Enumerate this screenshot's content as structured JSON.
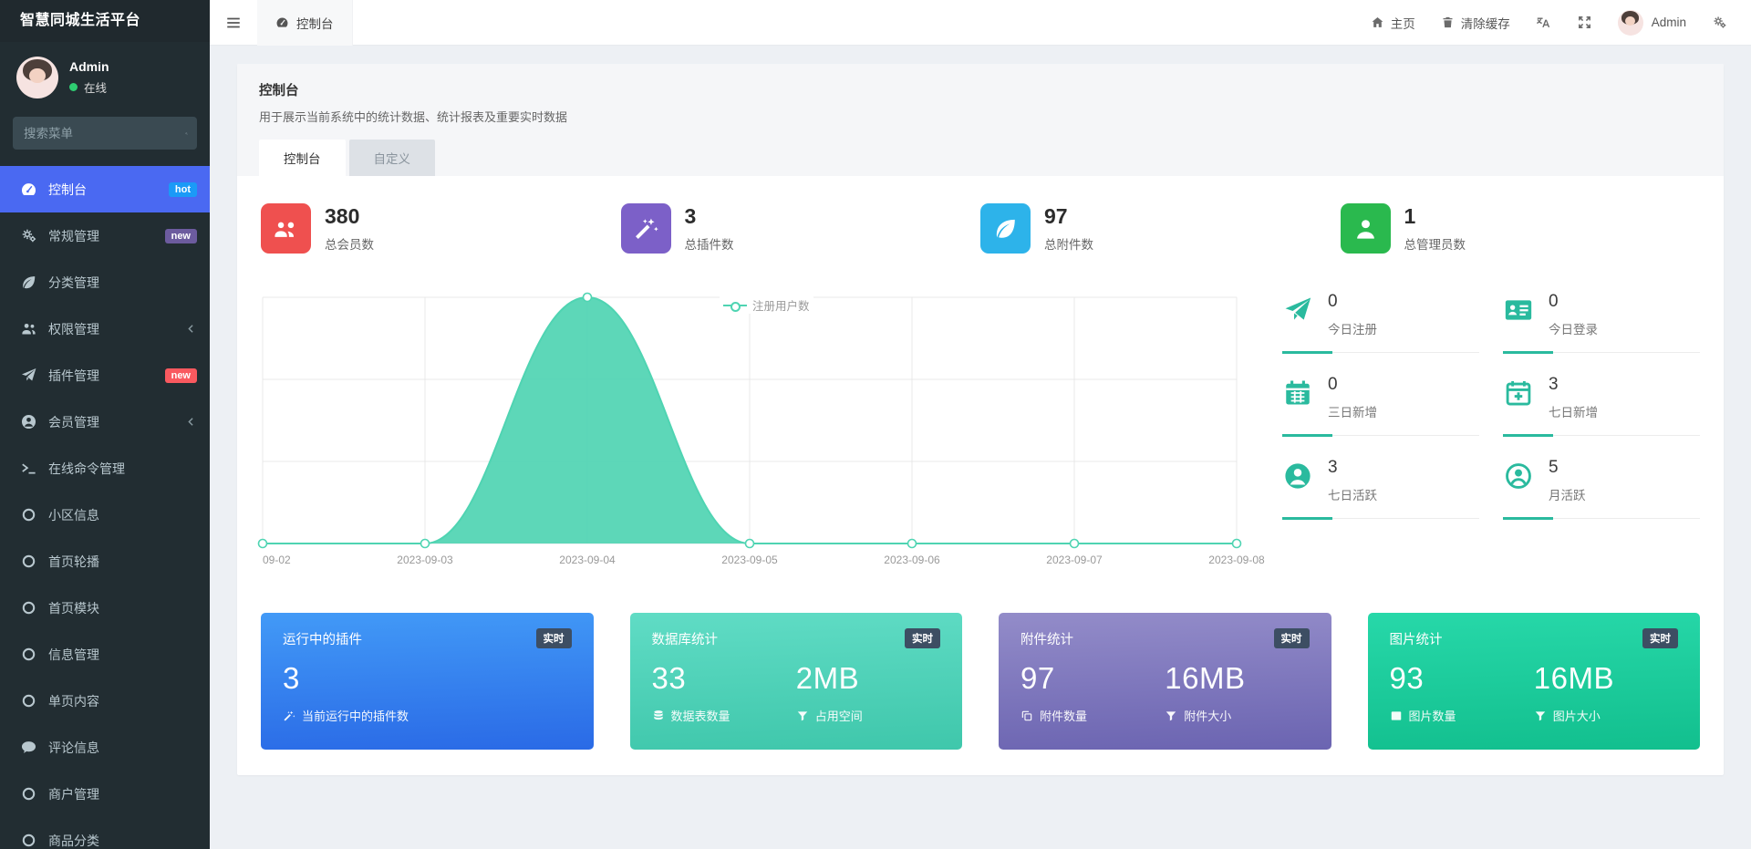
{
  "app": {
    "title": "智慧同城生活平台"
  },
  "sidebar": {
    "user": {
      "name": "Admin",
      "status": "在线"
    },
    "search_placeholder": "搜索菜单",
    "items": [
      {
        "slug": "dashboard",
        "icon": "gauge",
        "label": "控制台",
        "badge": "hot",
        "badge_color": "#1b9af7",
        "active": true
      },
      {
        "slug": "general",
        "icon": "gears",
        "label": "常规管理",
        "badge": "new",
        "badge_color": "#6c5b9e"
      },
      {
        "slug": "category",
        "icon": "leaf",
        "label": "分类管理"
      },
      {
        "slug": "permission",
        "icon": "users",
        "label": "权限管理",
        "arrow": true
      },
      {
        "slug": "plugin",
        "icon": "send",
        "label": "插件管理",
        "badge": "new",
        "badge_color": "#f9595f"
      },
      {
        "slug": "member",
        "icon": "user-circle",
        "label": "会员管理",
        "arrow": true
      },
      {
        "slug": "command",
        "icon": "terminal",
        "label": "在线命令管理"
      },
      {
        "slug": "community",
        "icon": "circle",
        "label": "小区信息"
      },
      {
        "slug": "banner",
        "icon": "circle",
        "label": "首页轮播"
      },
      {
        "slug": "home-module",
        "icon": "circle",
        "label": "首页模块"
      },
      {
        "slug": "info",
        "icon": "circle",
        "label": "信息管理"
      },
      {
        "slug": "page",
        "icon": "circle",
        "label": "单页内容"
      },
      {
        "slug": "comment",
        "icon": "comment",
        "label": "评论信息"
      },
      {
        "slug": "merchant",
        "icon": "circle",
        "label": "商户管理"
      },
      {
        "slug": "goods-category",
        "icon": "circle",
        "label": "商品分类"
      }
    ]
  },
  "navbar": {
    "tab": "控制台",
    "home": "主页",
    "clear_cache": "清除缓存",
    "user": "Admin"
  },
  "page": {
    "title": "控制台",
    "subtitle": "用于展示当前系统中的统计数据、统计报表及重要实时数据",
    "tabs": [
      {
        "label": "控制台",
        "active": true
      },
      {
        "label": "自定义"
      }
    ]
  },
  "stats": [
    {
      "slug": "total-members",
      "icon": "members",
      "color": "#ef504f",
      "value": "380",
      "label": "总会员数"
    },
    {
      "slug": "total-plugins",
      "icon": "magic",
      "color": "#7c60c8",
      "value": "3",
      "label": "总插件数"
    },
    {
      "slug": "total-attachments",
      "icon": "leaf",
      "color": "#2db3ea",
      "value": "97",
      "label": "总附件数"
    },
    {
      "slug": "total-admins",
      "icon": "admin",
      "color": "#2ab94e",
      "value": "1",
      "label": "总管理员数"
    }
  ],
  "chart_data": {
    "type": "area",
    "title": "",
    "xlabel": "",
    "ylabel": "",
    "categories": [
      "09-02",
      "2023-09-03",
      "2023-09-04",
      "2023-09-05",
      "2023-09-06",
      "2023-09-07",
      "2023-09-08"
    ],
    "series": [
      {
        "name": "注册用户数",
        "values": [
          0,
          0,
          380,
          0,
          0,
          0,
          0
        ]
      }
    ],
    "ylim": [
      0,
      380
    ],
    "grid": true,
    "legend_position": "top-center",
    "color": "#4fd4b2"
  },
  "mini_stats": [
    {
      "slug": "today-register",
      "icon": "send2",
      "value": "0",
      "label": "今日注册"
    },
    {
      "slug": "today-login",
      "icon": "id-card",
      "value": "0",
      "label": "今日登录"
    },
    {
      "slug": "three-day-new",
      "icon": "calendar",
      "value": "0",
      "label": "三日新增"
    },
    {
      "slug": "seven-day-new",
      "icon": "calendar-plus",
      "value": "3",
      "label": "七日新增"
    },
    {
      "slug": "seven-day-active",
      "icon": "user-solid",
      "value": "3",
      "label": "七日活跃"
    },
    {
      "slug": "month-active",
      "icon": "user-outline",
      "value": "5",
      "label": "月活跃"
    }
  ],
  "cards": [
    {
      "slug": "running-plugins",
      "title": "运行中的插件",
      "badge": "实时",
      "gradient": [
        "#429af7",
        "#2a6ae6"
      ],
      "items": [
        {
          "icon": "magic",
          "value": "3",
          "label": "当前运行中的插件数"
        }
      ]
    },
    {
      "slug": "database-stats",
      "title": "数据库统计",
      "badge": "实时",
      "gradient": [
        "#60dcc5",
        "#3fc7ab"
      ],
      "items": [
        {
          "icon": "database",
          "value": "33",
          "label": "数据表数量"
        },
        {
          "icon": "filter",
          "value": "2MB",
          "label": "占用空间"
        }
      ]
    },
    {
      "slug": "attachment-stats",
      "title": "附件统计",
      "badge": "实时",
      "gradient": [
        "#938cc9",
        "#6b64b1"
      ],
      "items": [
        {
          "icon": "clone",
          "value": "97",
          "label": "附件数量"
        },
        {
          "icon": "filter",
          "value": "16MB",
          "label": "附件大小"
        }
      ]
    },
    {
      "slug": "image-stats",
      "title": "图片统计",
      "badge": "实时",
      "gradient": [
        "#27d8a9",
        "#12bf8e"
      ],
      "items": [
        {
          "icon": "image",
          "value": "93",
          "label": "图片数量"
        },
        {
          "icon": "filter",
          "value": "16MB",
          "label": "图片大小"
        }
      ]
    }
  ]
}
